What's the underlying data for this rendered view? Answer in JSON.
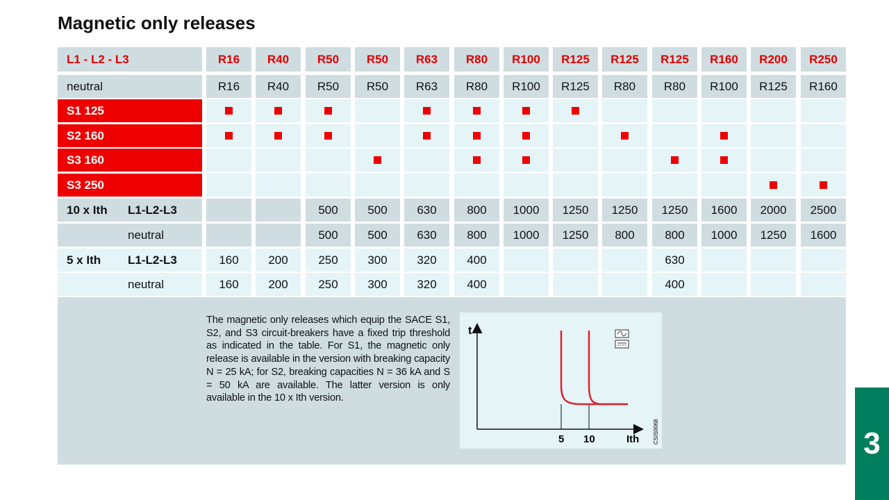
{
  "page": {
    "title": "Magnetic only releases",
    "section_number": "3"
  },
  "colors": {
    "accent_red": "#ee0000",
    "row_grey": "#cfdde1",
    "row_light": "#e4f4f7",
    "section_green": "#007f5f"
  },
  "table": {
    "header": {
      "label": "L1 - L2 - L3",
      "columns": [
        "R16",
        "R40",
        "R50",
        "R50",
        "R63",
        "R80",
        "R100",
        "R125",
        "R125",
        "R125",
        "R160",
        "R200",
        "R250"
      ]
    },
    "neutral": {
      "label": "neutral",
      "values": [
        "R16",
        "R40",
        "R50",
        "R50",
        "R63",
        "R80",
        "R100",
        "R125",
        "R80",
        "R80",
        "R100",
        "R125",
        "R160"
      ]
    },
    "breakers": [
      {
        "label": "S1 125",
        "marks": [
          1,
          1,
          1,
          0,
          1,
          1,
          1,
          1,
          0,
          0,
          0,
          0,
          0
        ]
      },
      {
        "label": "S2 160",
        "marks": [
          1,
          1,
          1,
          0,
          1,
          1,
          1,
          0,
          1,
          0,
          1,
          0,
          0
        ]
      },
      {
        "label": "S3 160",
        "marks": [
          0,
          0,
          0,
          1,
          0,
          1,
          1,
          0,
          0,
          1,
          1,
          0,
          0
        ]
      },
      {
        "label": "S3 250",
        "marks": [
          0,
          0,
          0,
          0,
          0,
          0,
          0,
          0,
          0,
          0,
          0,
          1,
          1
        ]
      }
    ],
    "threshold_10": {
      "label": "10 x Ith",
      "rows": [
        {
          "sub": "L1-L2-L3",
          "values": [
            "",
            "",
            "500",
            "500",
            "630",
            "800",
            "1000",
            "1250",
            "1250",
            "1250",
            "1600",
            "2000",
            "2500"
          ]
        },
        {
          "sub": "neutral",
          "values": [
            "",
            "",
            "500",
            "500",
            "630",
            "800",
            "1000",
            "1250",
            "800",
            "800",
            "1000",
            "1250",
            "1600"
          ]
        }
      ]
    },
    "threshold_5": {
      "label": "5 x Ith",
      "rows": [
        {
          "sub": "L1-L2-L3",
          "values": [
            "160",
            "200",
            "250",
            "300",
            "320",
            "400",
            "",
            "",
            "",
            "630",
            "",
            "",
            ""
          ]
        },
        {
          "sub": "neutral",
          "values": [
            "160",
            "200",
            "250",
            "300",
            "320",
            "400",
            "",
            "",
            "",
            "400",
            "",
            "",
            ""
          ]
        }
      ]
    }
  },
  "description": "The magnetic only releases which equip the SACE S1, S2, and S3 circuit-breakers have a fixed trip threshold as indicated in the table. For S1, the magnetic only release is available in the version with breaking capacity N = 25 kA; for S2, breaking capacities N = 36 kA and S = 50 kA are available. The latter version is only available in the 10 x Ith version.",
  "graph": {
    "y_label": "t",
    "x_label": "Ith",
    "tick_5": "5",
    "tick_10": "10",
    "code": "CSIS0068",
    "icons": [
      "ac-current-icon",
      "dc-current-icon"
    ]
  }
}
